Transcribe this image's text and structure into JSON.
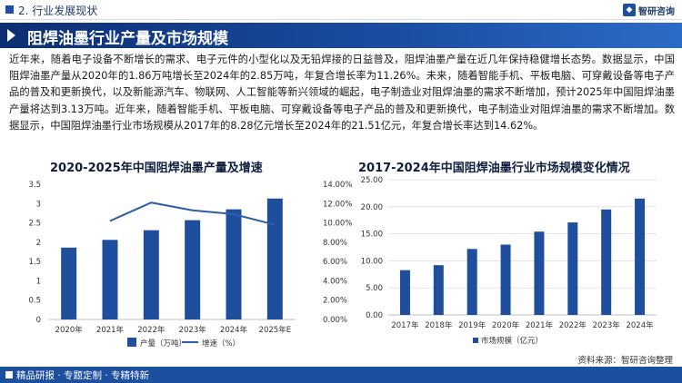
{
  "header": {
    "section": "2. 行业发展现状",
    "brand_name": "智研咨询"
  },
  "banner": {
    "title": "阻焊油墨行业产量及市场规模"
  },
  "paragraph": "近年来，随着电子设备不断增长的需求、电子元件的小型化以及无铅焊接的日益普及，阻焊油墨产量在近几年保持稳健增长态势。数据显示，中国阻焊油墨产量从2020年的1.86万吨增长至2024年的2.85万吨，年复合增长率为11.26%。未来，随着智能手机、平板电脑、可穿戴设备等电子产品的普及和更新换代，以及新能源汽车、物联网、人工智能等新兴领域的崛起，电子制造业对阻焊油墨的需求不断增加，预计2025年中国阻焊油墨产量将达到3.13万吨。近年来，随着智能手机、平板电脑、可穿戴设备等电子产品的普及和更新换代，电子制造业对阻焊油墨的需求不断增加。数据显示，中国阻焊油墨行业市场规模从2017年的8.28亿元增长至2024年的21.51亿元，年复合增长率达到14.62%。",
  "colors": {
    "bar": "#1f4e9c",
    "line": "#2f5da8",
    "banner": "#0c2f73",
    "footer": "#1d4f9f"
  },
  "chart_data": [
    {
      "type": "bar",
      "title": "2020-2025年中国阻焊油墨产量及增速",
      "categories": [
        "2020年",
        "2021年",
        "2022年",
        "2023年",
        "2024年",
        "2025年E"
      ],
      "series": [
        {
          "name": "产量（万吨）",
          "axis": "left",
          "type": "bar",
          "values": [
            1.86,
            2.06,
            2.31,
            2.57,
            2.85,
            3.13
          ]
        },
        {
          "name": "增速（%）",
          "axis": "right",
          "type": "line",
          "values": [
            null,
            10.2,
            12.1,
            11.3,
            10.9,
            9.8
          ]
        }
      ],
      "y_left": {
        "ylim": [
          0,
          3.5
        ],
        "ticks": [
          "0",
          "0.5",
          "1",
          "1.5",
          "2",
          "2.5",
          "3",
          "3.5"
        ]
      },
      "y_right": {
        "ylim": [
          0,
          14
        ],
        "ticks": [
          "0.00%",
          "2.00%",
          "4.00%",
          "6.00%",
          "8.00%",
          "10.00%",
          "12.00%",
          "14.00%"
        ]
      },
      "legend_position": "bottom",
      "grid": false
    },
    {
      "type": "bar",
      "title": "2017-2024年中国阻焊油墨行业市场规模变化情况",
      "categories": [
        "2017年",
        "2018年",
        "2019年",
        "2020年",
        "2021年",
        "2022年",
        "2023年",
        "2024年"
      ],
      "series": [
        {
          "name": "市场规模（亿元）",
          "values": [
            8.28,
            9.2,
            12.2,
            13.0,
            15.4,
            17.1,
            19.5,
            21.51
          ]
        }
      ],
      "ylim": [
        0,
        25
      ],
      "ticks": [
        "0.00",
        "5.00",
        "10.00",
        "15.00",
        "20.00",
        "25.00"
      ],
      "legend_position": "bottom",
      "grid": true
    }
  ],
  "source": "资料来源：智研咨询整理",
  "footer": "精品研报 · 专题定制 · 专精特新"
}
